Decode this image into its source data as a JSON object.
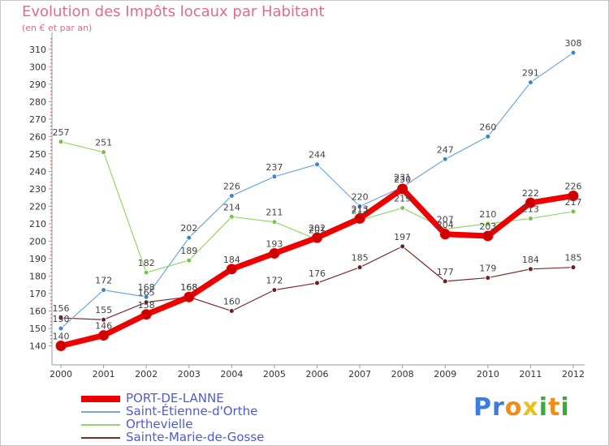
{
  "chart_data": {
    "type": "line",
    "title": "Evolution des Impôts locaux par Habitant",
    "subtitle": "(en € et par an)",
    "xlabel": "",
    "ylabel": "",
    "x": [
      "2000",
      "2001",
      "2002",
      "2003",
      "2004",
      "2005",
      "2006",
      "2007",
      "2008",
      "2009",
      "2010",
      "2011",
      "2012"
    ],
    "ylim": [
      130,
      315
    ],
    "yticks": [
      140,
      150,
      160,
      170,
      180,
      190,
      200,
      210,
      220,
      230,
      240,
      250,
      260,
      270,
      280,
      290,
      300,
      310
    ],
    "grid": false,
    "legend_position": "bottom-left",
    "series": [
      {
        "name": "PORT-DE-LANNE",
        "color": "#ee0000",
        "values": [
          140,
          146,
          158,
          168,
          184,
          193,
          202,
          213,
          230,
          204,
          203,
          222,
          226
        ],
        "labels": [
          "140",
          "146",
          "158",
          "168",
          "184",
          "193",
          "202",
          "213",
          "230",
          "204",
          "203",
          "222",
          "226"
        ]
      },
      {
        "name": "Saint-Étienne-d'Orthe",
        "color": "#6fa8dc",
        "values": [
          150,
          172,
          168,
          202,
          226,
          237,
          244,
          220,
          231,
          247,
          260,
          291,
          308
        ],
        "labels": [
          "150",
          "172",
          "168",
          "202",
          "226",
          "237",
          "244",
          "220",
          "231",
          "247",
          "260",
          "291",
          "308"
        ]
      },
      {
        "name": "Orthevielle",
        "color": "#93d66b",
        "values": [
          257,
          251,
          182,
          189,
          214,
          211,
          201,
          212,
          219,
          207,
          210,
          213,
          217
        ],
        "labels": [
          "257",
          "251",
          "182",
          "189",
          "214",
          "211",
          "201",
          "212",
          "219",
          "207",
          "210",
          "213",
          "217"
        ]
      },
      {
        "name": "Sainte-Marie-de-Gosse",
        "color": "#7b2a2a",
        "values": [
          156,
          155,
          165,
          168,
          160,
          172,
          176,
          185,
          197,
          177,
          179,
          184,
          185
        ],
        "labels": [
          "156",
          "155",
          "165",
          "168",
          "160",
          "172",
          "176",
          "185",
          "197",
          "177",
          "179",
          "184",
          "185"
        ]
      }
    ]
  },
  "brand": {
    "letters": [
      "P",
      "r",
      "o",
      "x",
      "i",
      "t",
      "i"
    ],
    "colors": [
      "#3b7dd8",
      "#3b7dd8",
      "#f08c1a",
      "#e8c21a",
      "#3ba83b",
      "#f08c1a",
      "#3ba83b"
    ]
  }
}
